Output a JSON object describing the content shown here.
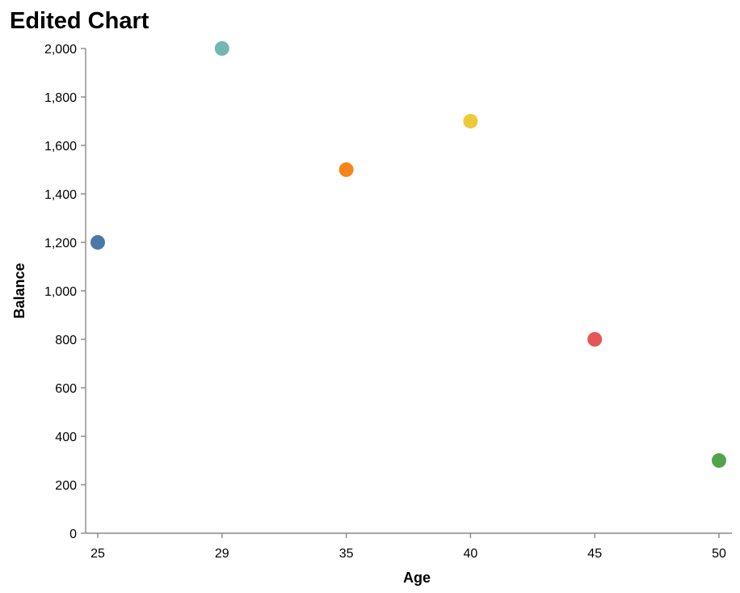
{
  "chart_data": {
    "type": "scatter",
    "title": "Edited Chart",
    "xlabel": "Age",
    "ylabel": "Balance",
    "x_ticks": [
      "25",
      "29",
      "35",
      "40",
      "45",
      "50"
    ],
    "y_ticks": [
      0,
      200,
      400,
      600,
      800,
      1000,
      1200,
      1400,
      1600,
      1800,
      2000
    ],
    "y_tick_labels": [
      "0",
      "200",
      "400",
      "600",
      "800",
      "1,000",
      "1,200",
      "1,400",
      "1,600",
      "1,800",
      "2,000"
    ],
    "ylim": [
      0,
      2000
    ],
    "grid": false,
    "points": [
      {
        "x": "25",
        "y": 1200,
        "color": "#4c78a8"
      },
      {
        "x": "29",
        "y": 2000,
        "color": "#72b7b2"
      },
      {
        "x": "35",
        "y": 1500,
        "color": "#f58518"
      },
      {
        "x": "40",
        "y": 1700,
        "color": "#eeca3b"
      },
      {
        "x": "45",
        "y": 800,
        "color": "#e45756"
      },
      {
        "x": "50",
        "y": 300,
        "color": "#54a24b"
      }
    ],
    "axis_color": "#888888"
  }
}
